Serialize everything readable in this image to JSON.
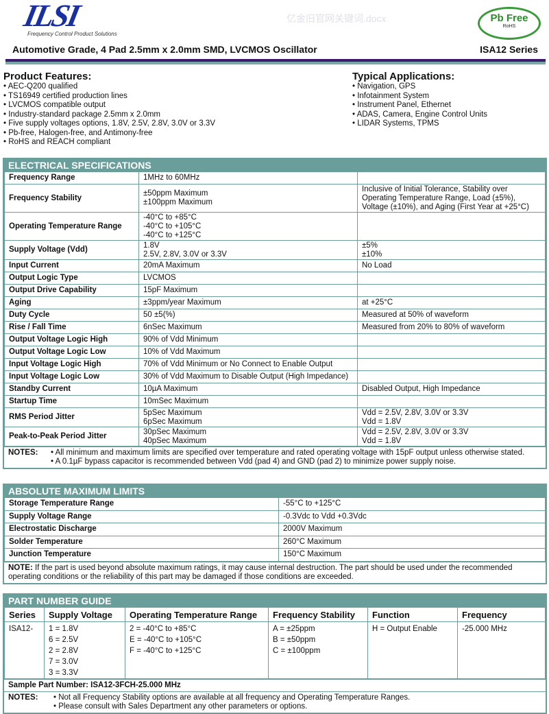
{
  "header": {
    "logo_text": "ILSI",
    "logo_tagline": "Frequency Control Product Solutions",
    "badge_main": "Pb Free",
    "badge_sub": "RoHS",
    "watermark": "亿金旧官网关键词.docx",
    "title": "Automotive Grade, 4 Pad 2.5mm x 2.0mm SMD, LVCMOS Oscillator",
    "series": "ISA12 Series",
    "colors": {
      "accent": "#6a9e9b",
      "rule": "#3c1a6e"
    }
  },
  "features": {
    "title": "Product Features:",
    "items": [
      "AEC-Q200 qualified",
      "TS16949 certified production lines",
      "LVCMOS compatible output",
      "Industry-standard package 2.5mm x 2.0mm",
      "Five supply voltages options, 1.8V, 2.5V, 2.8V, 3.0V or 3.3V",
      "Pb-free, Halogen-free, and Antimony-free",
      "RoHS and REACH compliant"
    ]
  },
  "applications": {
    "title": "Typical Applications:",
    "items": [
      "Navigation, GPS",
      "Infotainment System",
      "Instrument Panel, Ethernet",
      "ADAS, Camera, Engine Control Units",
      "LIDAR Systems, TPMS"
    ]
  },
  "electrical": {
    "title": "ELECTRICAL SPECIFICATIONS",
    "rows": [
      [
        "Frequency Range",
        "1MHz to 60MHz",
        ""
      ],
      [
        "Frequency Stability",
        "±50ppm Maximum\n±100ppm Maximum",
        "Inclusive of Initial Tolerance, Stability over Operating Temperature Range, Load (±5%), Voltage (±10%), and Aging (First Year at +25°C)"
      ],
      [
        "Operating Temperature Range",
        "-40°C to +85°C\n-40°C to +105°C\n-40°C to +125°C",
        ""
      ],
      [
        "Supply Voltage (Vdd)",
        "1.8V\n2.5V, 2.8V, 3.0V or 3.3V",
        "±5%\n±10%"
      ],
      [
        "Input Current",
        "20mA Maximum",
        "No Load"
      ],
      [
        "Output Logic Type",
        "LVCMOS",
        ""
      ],
      [
        "Output Drive Capability",
        "15pF Maximum",
        ""
      ],
      [
        "Aging",
        "±3ppm/year Maximum",
        "at +25°C"
      ],
      [
        "Duty Cycle",
        "50 ±5(%)",
        "Measured at 50% of waveform"
      ],
      [
        "Rise / Fall Time",
        "6nSec Maximum",
        "Measured from 20% to 80% of waveform"
      ],
      [
        "Output Voltage Logic High",
        "90% of Vdd Minimum",
        ""
      ],
      [
        "Output Voltage Logic Low",
        "10% of Vdd Maximum",
        ""
      ],
      [
        "Input Voltage Logic High",
        "70% of Vdd Minimum or No Connect to Enable Output",
        ""
      ],
      [
        "Input Voltage Logic Low",
        "30% of Vdd Maximum to Disable Output (High Impedance)",
        ""
      ],
      [
        "Standby Current",
        "10µA Maximum",
        "Disabled Output, High Impedance"
      ],
      [
        "Startup Time",
        "10mSec Maximum",
        ""
      ],
      [
        "RMS Period Jitter",
        "5pSec Maximum\n6pSec Maximum",
        "Vdd = 2.5V, 2.8V, 3.0V or 3.3V\nVdd = 1.8V"
      ],
      [
        "Peak-to-Peak Period Jitter",
        "30pSec Maximum\n40pSec Maximum",
        "Vdd = 2.5V, 2.8V, 3.0V or 3.3V\nVdd = 1.8V"
      ]
    ],
    "notes_label": "NOTES:",
    "notes": [
      "All minimum and maximum limits are specified over temperature and rated operating voltage with 15pF output unless otherwise stated.",
      "A 0.1µF bypass capacitor is recommended between Vdd (pad 4) and GND (pad 2) to minimize power supply noise."
    ]
  },
  "absolute": {
    "title": "ABSOLUTE MAXIMUM LIMITS",
    "rows": [
      [
        "Storage Temperature Range",
        "-55°C to +125°C"
      ],
      [
        "Supply Voltage Range",
        "-0.3Vdc to Vdd +0.3Vdc"
      ],
      [
        "Electrostatic Discharge",
        "2000V Maximum"
      ],
      [
        "Solder Temperature",
        "260°C Maximum"
      ],
      [
        "Junction Temperature",
        "150°C Maximum"
      ]
    ],
    "note_label": "NOTE:",
    "note": "If the part is used beyond absolute maximum ratings, it may cause internal destruction. The part should be used under the recommended operating conditions or the reliability of this part may be damaged if those conditions are exceeded."
  },
  "partnumber": {
    "title": "PART NUMBER GUIDE",
    "headers": [
      "Series",
      "Supply Voltage",
      "Operating Temperature Range",
      "Frequency Stability",
      "Function",
      "Frequency"
    ],
    "cols": [
      [
        "ISA12-"
      ],
      [
        "1 = 1.8V",
        "6 = 2.5V",
        "2 = 2.8V",
        "7 = 3.0V",
        "3 = 3.3V"
      ],
      [
        "2 = -40°C to +85°C",
        "E = -40°C to +105°C",
        "F = -40°C to +125°C"
      ],
      [
        "A = ±25ppm",
        "B = ±50ppm",
        "C = ±100ppm"
      ],
      [
        "H  = Output Enable"
      ],
      [
        "-25.000 MHz"
      ]
    ],
    "sample": "Sample Part Number: ISA12-3FCH-25.000 MHz",
    "notes_label": "NOTES:",
    "notes": [
      "Not all Frequency Stability options are available at all frequency and Operating Temperature Ranges.",
      "Please consult with Sales Department any other parameters or options."
    ]
  }
}
